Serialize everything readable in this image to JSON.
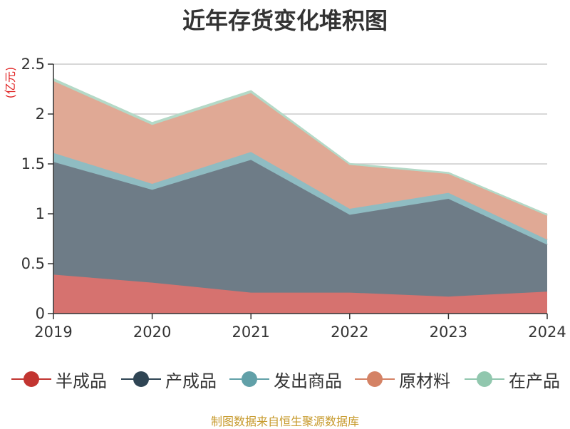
{
  "chart_data": {
    "type": "area",
    "stacked": true,
    "title": "近年存货变化堆积图",
    "ylabel": "(亿元)",
    "xlabel": "",
    "x": [
      "2019",
      "2020",
      "2021",
      "2022",
      "2023",
      "2024"
    ],
    "ylim": [
      0,
      2.5
    ],
    "yticks": [
      0,
      0.5,
      1,
      1.5,
      2,
      2.5
    ],
    "ytick_labels": [
      "0",
      "0.5",
      "1",
      "1.5",
      "2",
      "2.5"
    ],
    "grid": true,
    "legend_position": "bottom",
    "series": [
      {
        "name": "半成品",
        "color": "#c23531",
        "fill": "#d6726f",
        "values": [
          0.39,
          0.31,
          0.21,
          0.21,
          0.17,
          0.22
        ]
      },
      {
        "name": "产成品",
        "color": "#2f4554",
        "fill": "#6e7c87",
        "values": [
          1.13,
          0.93,
          1.33,
          0.78,
          0.98,
          0.47
        ]
      },
      {
        "name": "发出商品",
        "color": "#61a0a8",
        "fill": "#8fbcc2",
        "values": [
          0.09,
          0.06,
          0.08,
          0.06,
          0.06,
          0.05
        ]
      },
      {
        "name": "原材料",
        "color": "#d48265",
        "fill": "#e0a995",
        "values": [
          0.72,
          0.59,
          0.59,
          0.44,
          0.19,
          0.24
        ]
      },
      {
        "name": "在产品",
        "color": "#91c7ae",
        "fill": "#b4d9c7",
        "values": [
          0.02,
          0.02,
          0.02,
          0.01,
          0.01,
          0.01
        ]
      }
    ]
  },
  "source_text": "制图数据来自恒生聚源数据库"
}
